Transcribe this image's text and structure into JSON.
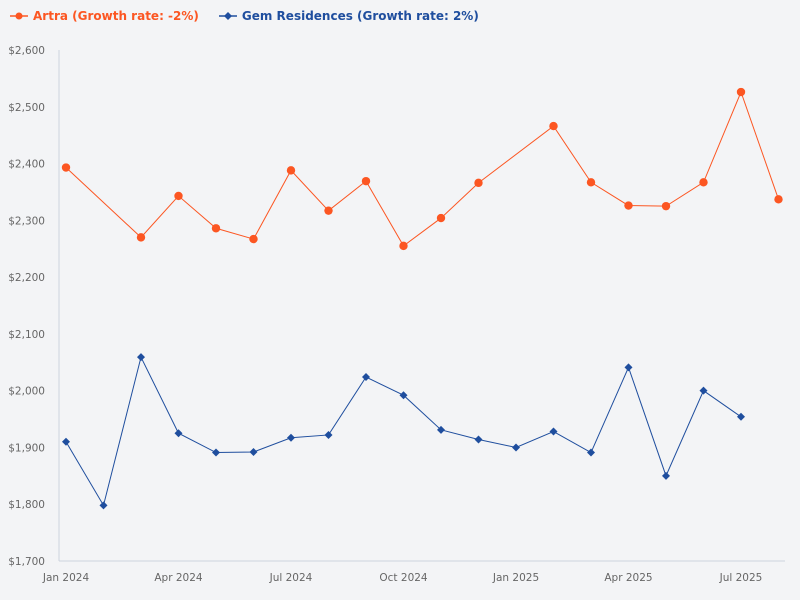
{
  "chart_data": {
    "type": "line",
    "title": "",
    "xlabel": "",
    "ylabel": "",
    "ylim": [
      1700,
      2600
    ],
    "yticks": [
      "$1,700",
      "$1,800",
      "$1,900",
      "$2,000",
      "$2,100",
      "$2,200",
      "$2,300",
      "$2,400",
      "$2,500",
      "$2,600"
    ],
    "ytick_values": [
      1700,
      1800,
      1900,
      2000,
      2100,
      2200,
      2300,
      2400,
      2500,
      2600
    ],
    "xticks": [
      "Jan 2024",
      "Apr 2024",
      "Jul 2024",
      "Oct 2024",
      "Jan 2025",
      "Apr 2025",
      "Jul 2025"
    ],
    "xtick_dates": [
      "2024-01",
      "2024-04",
      "2024-07",
      "2024-10",
      "2025-01",
      "2025-04",
      "2025-07"
    ],
    "xlim": [
      "2024-01",
      "2025-08"
    ],
    "grid": false,
    "legend_position": "top-left",
    "series": [
      {
        "name": "Artra (Growth rate: -2%)",
        "color": "#fc5622",
        "marker": "circle",
        "x": [
          "2024-01",
          "2024-03",
          "2024-04",
          "2024-05",
          "2024-06",
          "2024-07",
          "2024-08",
          "2024-09",
          "2024-10",
          "2024-11",
          "2024-12",
          "2025-02",
          "2025-03",
          "2025-04",
          "2025-05",
          "2025-06",
          "2025-07",
          "2025-08"
        ],
        "values": [
          2393,
          2270,
          2343,
          2286,
          2267,
          2388,
          2317,
          2369,
          2255,
          2304,
          2366,
          2466,
          2367,
          2326,
          2325,
          2367,
          2526,
          2337
        ]
      },
      {
        "name": "Gem Residences (Growth rate: 2%)",
        "color": "#1f4e9e",
        "marker": "diamond",
        "x": [
          "2024-01",
          "2024-02",
          "2024-03",
          "2024-04",
          "2024-05",
          "2024-06",
          "2024-07",
          "2024-08",
          "2024-09",
          "2024-10",
          "2024-11",
          "2024-12",
          "2025-01",
          "2025-02",
          "2025-03",
          "2025-04",
          "2025-05",
          "2025-06",
          "2025-07"
        ],
        "values": [
          1910,
          1798,
          2059,
          1925,
          1891,
          1892,
          1917,
          1922,
          2024,
          1992,
          1931,
          1914,
          1900,
          1928,
          1891,
          2041,
          1850,
          2000,
          1954
        ]
      }
    ]
  }
}
